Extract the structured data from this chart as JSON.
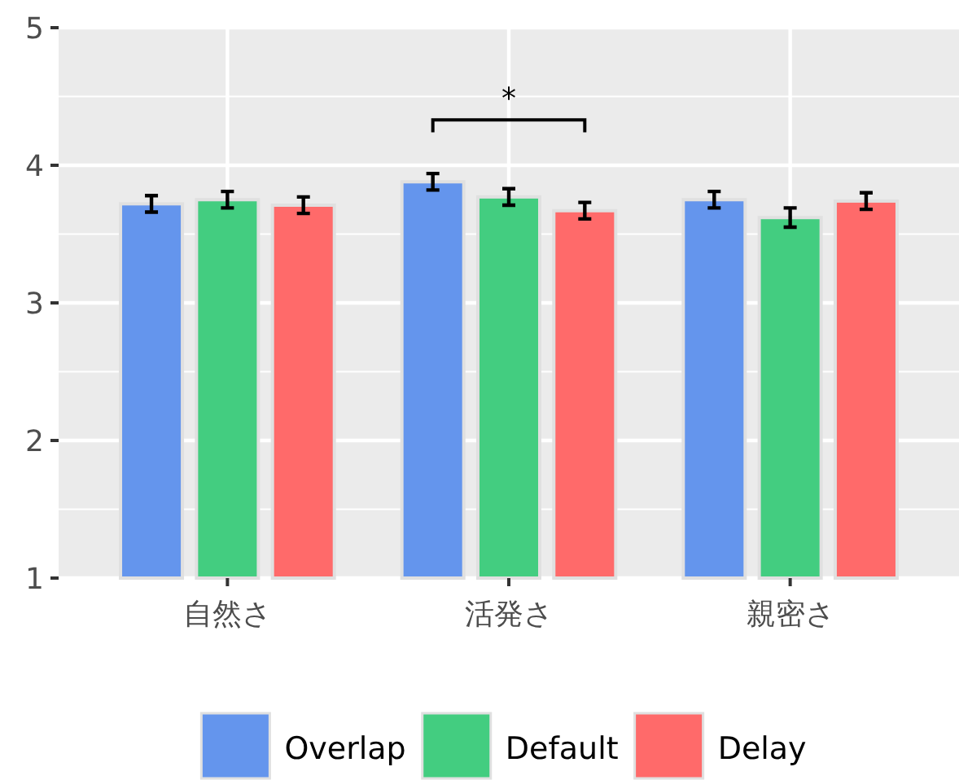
{
  "chart_data": {
    "type": "bar",
    "categories": [
      "自然さ",
      "活発さ",
      "親密さ"
    ],
    "series": [
      {
        "name": "Overlap",
        "color": "#6495ed",
        "values": [
          3.72,
          3.88,
          3.75
        ],
        "errors": [
          0.06,
          0.06,
          0.06
        ]
      },
      {
        "name": "Default",
        "color": "#43cd80",
        "values": [
          3.75,
          3.77,
          3.62
        ],
        "errors": [
          0.06,
          0.06,
          0.07
        ]
      },
      {
        "name": "Delay",
        "color": "#ff6a6a",
        "values": [
          3.71,
          3.67,
          3.74
        ],
        "errors": [
          0.06,
          0.06,
          0.06
        ]
      }
    ],
    "ylim": [
      1,
      5
    ],
    "yticks": [
      1,
      2,
      3,
      4,
      5
    ],
    "grid": true,
    "legend": "bottom",
    "annotations": [
      "*"
    ]
  }
}
